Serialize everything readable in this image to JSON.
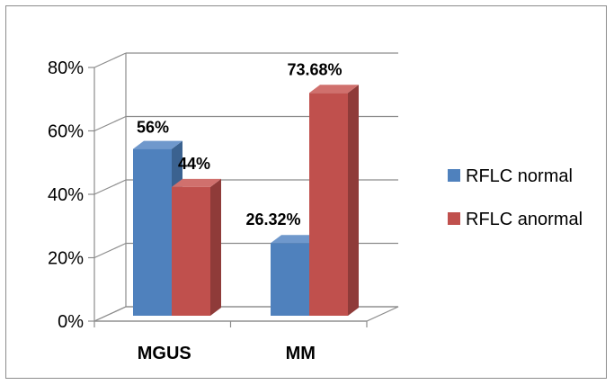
{
  "chart_data": {
    "type": "bar",
    "title": "",
    "xlabel": "",
    "ylabel": "",
    "categories": [
      "MGUS",
      "MM"
    ],
    "series": [
      {
        "name": "RFLC normal",
        "values": [
          56,
          26.32
        ],
        "labels": [
          "56%",
          "26.32%"
        ],
        "color": "#4f81bd",
        "side_color": "#3b6290",
        "top_color": "#6f98cc"
      },
      {
        "name": "RFLC anormal",
        "values": [
          44,
          73.68
        ],
        "labels": [
          "44%",
          "73.68%"
        ],
        "color": "#c0504d",
        "side_color": "#8f3b39",
        "top_color": "#d0706d"
      }
    ],
    "ylim": [
      0,
      80
    ],
    "yticks": [
      0,
      20,
      40,
      60,
      80
    ],
    "ytick_labels": [
      "0%",
      "20%",
      "40%",
      "60%",
      "80%"
    ],
    "grid": true,
    "style": "3d-clustered-column",
    "legend_position": "right"
  }
}
